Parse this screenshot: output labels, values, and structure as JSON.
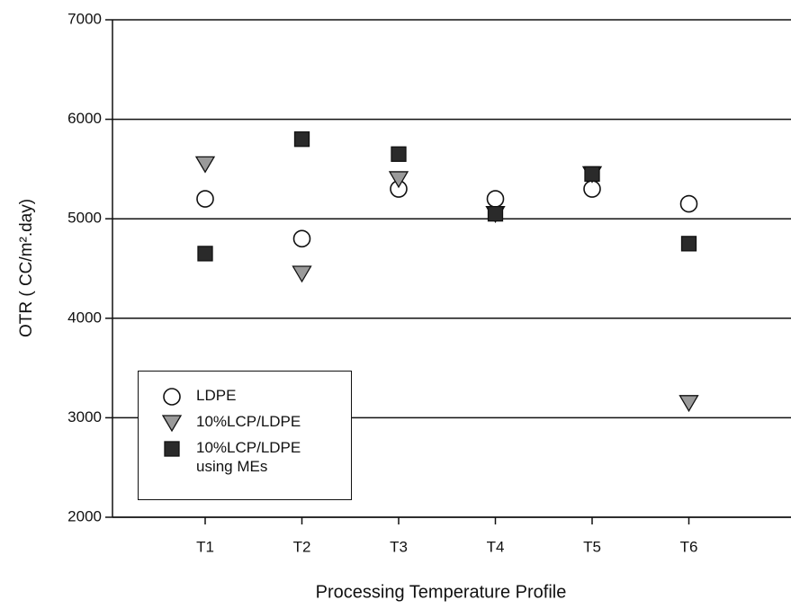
{
  "chart_data": {
    "type": "scatter",
    "x_label": "Processing Temperature Profile",
    "y_label": "OTR ( CC/m².day)",
    "categories": [
      "T1",
      "T2",
      "T3",
      "T4",
      "T5",
      "T6"
    ],
    "ylim": [
      2000,
      7000
    ],
    "yticks": [
      2000,
      3000,
      4000,
      5000,
      6000,
      7000
    ],
    "grid": true,
    "series": [
      {
        "name": "LDPE",
        "marker": "circle",
        "color": "#ffffff",
        "values": [
          5200,
          4800,
          5300,
          5200,
          5300,
          5150
        ]
      },
      {
        "name": "10%LCP/LDPE",
        "marker": "triangle-down",
        "color": "#9a9a9a",
        "values": [
          5550,
          4450,
          5400,
          5050,
          5450,
          3150
        ]
      },
      {
        "name": "10%LCP/LDPE using MEs",
        "marker": "square",
        "color": "#2a2a2a",
        "values": [
          4650,
          5800,
          5650,
          5050,
          5450,
          4750
        ]
      }
    ]
  }
}
